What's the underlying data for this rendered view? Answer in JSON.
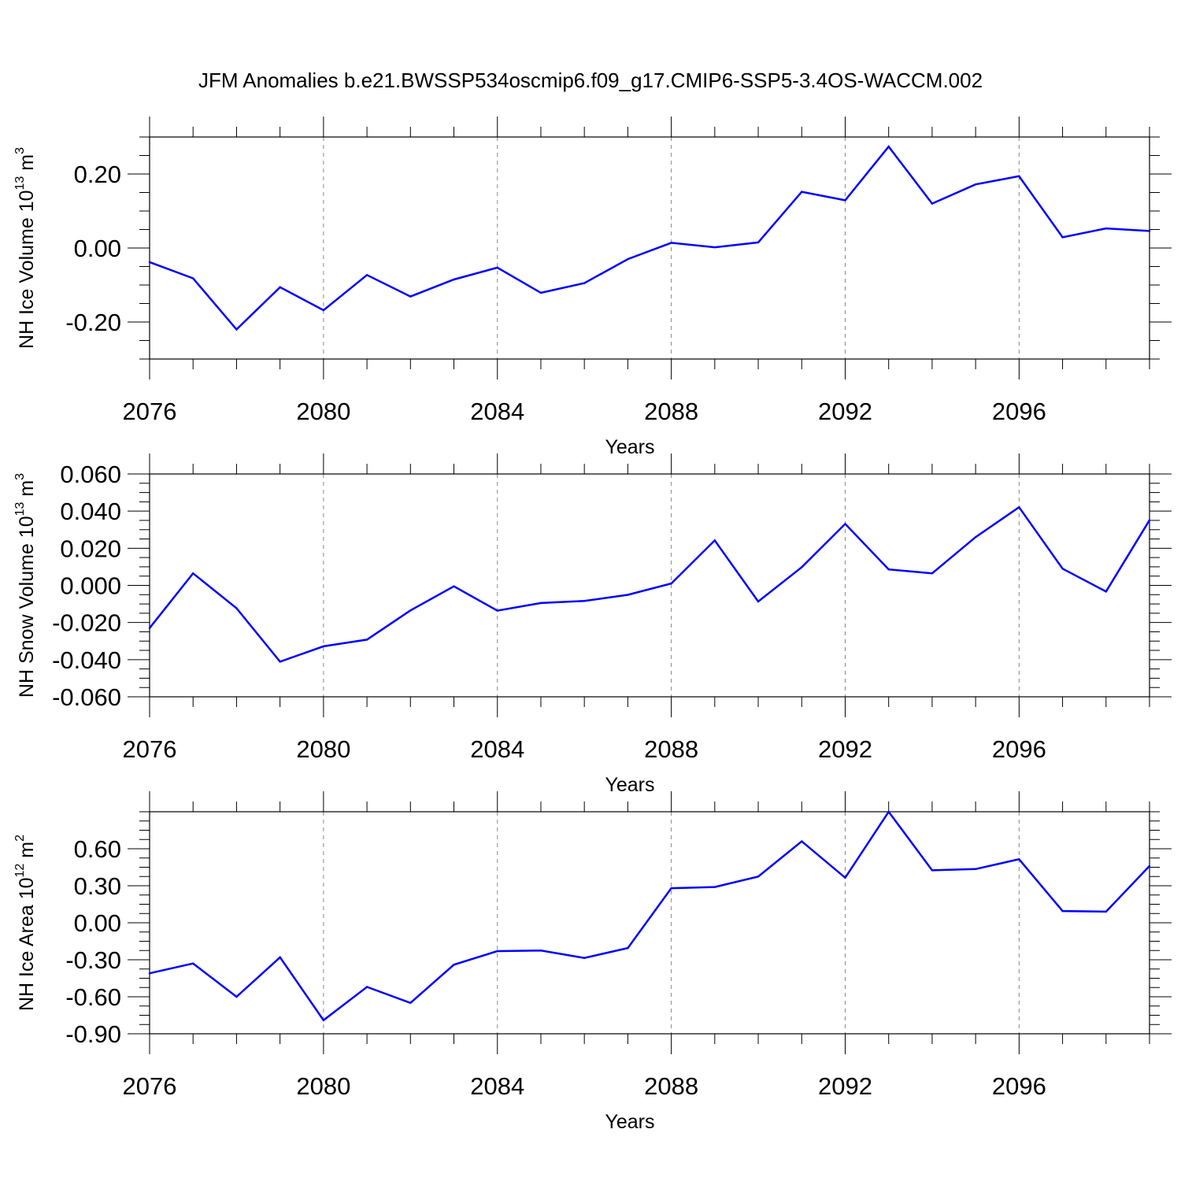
{
  "title": "JFM Anomalies b.e21.BWSSP534oscmip6.f09_g17.CMIP6-SSP5-3.4OS-WACCM.002",
  "colors": {
    "series": "#0000ff",
    "grid": "#888888",
    "axis": "#000000"
  },
  "chart_data": [
    {
      "type": "line",
      "ylabel": "NH Ice Volume 10",
      "ylabel_exp_base": "13",
      "ylabel_unit": " m",
      "ylabel_unit_exp": "3",
      "xlabel": "Years",
      "xlim": [
        2076,
        2099
      ],
      "ylim": [
        -0.3,
        0.3
      ],
      "x_ticks": [
        2076,
        2080,
        2084,
        2088,
        2092,
        2096
      ],
      "x_tick_labels": [
        "2076",
        "2080",
        "2084",
        "2088",
        "2092",
        "2096"
      ],
      "y_ticks": [
        -0.2,
        0.0,
        0.2
      ],
      "y_tick_labels": [
        "-0.20",
        "0.00",
        "0.20"
      ],
      "y_minor_step": 0.05,
      "x": [
        2076,
        2077,
        2078,
        2079,
        2080,
        2081,
        2082,
        2083,
        2084,
        2085,
        2086,
        2087,
        2088,
        2089,
        2090,
        2091,
        2092,
        2093,
        2094,
        2095,
        2096,
        2097,
        2098,
        2099
      ],
      "values": [
        -0.038,
        -0.082,
        -0.22,
        -0.106,
        -0.168,
        -0.073,
        -0.131,
        -0.085,
        -0.053,
        -0.121,
        -0.095,
        -0.03,
        0.014,
        0.002,
        0.015,
        0.152,
        0.129,
        0.274,
        0.12,
        0.172,
        0.194,
        0.029,
        0.053,
        0.046
      ]
    },
    {
      "type": "line",
      "ylabel": "NH Snow Volume 10",
      "ylabel_exp_base": "13",
      "ylabel_unit": " m",
      "ylabel_unit_exp": "3",
      "xlabel": "Years",
      "xlim": [
        2076,
        2099
      ],
      "ylim": [
        -0.06,
        0.06
      ],
      "x_ticks": [
        2076,
        2080,
        2084,
        2088,
        2092,
        2096
      ],
      "x_tick_labels": [
        "2076",
        "2080",
        "2084",
        "2088",
        "2092",
        "2096"
      ],
      "y_ticks": [
        -0.06,
        -0.04,
        -0.02,
        0.0,
        0.02,
        0.04,
        0.06
      ],
      "y_tick_labels": [
        "-0.060",
        "-0.040",
        "-0.020",
        "0.000",
        "0.020",
        "0.040",
        "0.060"
      ],
      "y_minor_step": 0.005,
      "x": [
        2076,
        2077,
        2078,
        2079,
        2080,
        2081,
        2082,
        2083,
        2084,
        2085,
        2086,
        2087,
        2088,
        2089,
        2090,
        2091,
        2092,
        2093,
        2094,
        2095,
        2096,
        2097,
        2098,
        2099
      ],
      "values": [
        -0.023,
        0.0065,
        -0.0123,
        -0.0411,
        -0.0328,
        -0.0292,
        -0.0135,
        -0.0005,
        -0.0136,
        -0.0095,
        -0.0084,
        -0.0051,
        0.001,
        0.0242,
        -0.0087,
        0.0098,
        0.0331,
        0.0086,
        0.0065,
        0.026,
        0.0421,
        0.009,
        -0.0033,
        0.0351
      ]
    },
    {
      "type": "line",
      "ylabel": "NH Ice Area 10",
      "ylabel_exp_base": "12",
      "ylabel_unit": " m",
      "ylabel_unit_exp": "2",
      "xlabel": "Years",
      "xlim": [
        2076,
        2099
      ],
      "ylim": [
        -0.9,
        0.9
      ],
      "x_ticks": [
        2076,
        2080,
        2084,
        2088,
        2092,
        2096
      ],
      "x_tick_labels": [
        "2076",
        "2080",
        "2084",
        "2088",
        "2092",
        "2096"
      ],
      "y_ticks": [
        -0.9,
        -0.6,
        -0.3,
        0.0,
        0.3,
        0.6
      ],
      "y_tick_labels": [
        "-0.90",
        "-0.60",
        "-0.30",
        "0.00",
        "0.30",
        "0.60"
      ],
      "y_minor_step": 0.075,
      "x": [
        2076,
        2077,
        2078,
        2079,
        2080,
        2081,
        2082,
        2083,
        2084,
        2085,
        2086,
        2087,
        2088,
        2089,
        2090,
        2091,
        2092,
        2093,
        2094,
        2095,
        2096,
        2097,
        2098,
        2099
      ],
      "values": [
        -0.41,
        -0.33,
        -0.6,
        -0.28,
        -0.79,
        -0.52,
        -0.65,
        -0.34,
        -0.23,
        -0.225,
        -0.285,
        -0.205,
        0.28,
        0.29,
        0.375,
        0.66,
        0.365,
        0.9,
        0.425,
        0.435,
        0.515,
        0.095,
        0.09,
        0.46
      ]
    }
  ]
}
